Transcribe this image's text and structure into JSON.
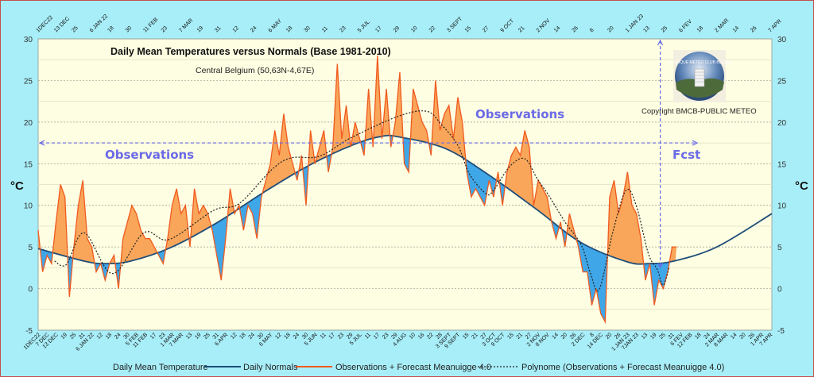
{
  "chart_data": {
    "type": "area",
    "title": "Daily Mean Temperatures versus Normals (Base 1981-2010)",
    "subtitle": "Central Belgium (50,63N-4,67E)",
    "ylabel": "°C",
    "ylabel_right": "°C",
    "ylim": [
      -5,
      30
    ],
    "yticks": [
      30,
      25,
      20,
      15,
      10,
      5,
      0,
      -5
    ],
    "xlim": [
      "2022-12-01",
      "2024-04-07"
    ],
    "grid": true,
    "legend_position": "bottom",
    "top_tick_labels": [
      "1DEC22",
      "13 DEC",
      "25",
      "6 JAN 22",
      "18",
      "30",
      "11 FEB",
      "23",
      "7 MAR",
      "19",
      "31",
      "12",
      "24",
      "6 MAY",
      "18",
      "30",
      "11",
      "23",
      "5 JUL",
      "17",
      "29",
      "10",
      "22",
      "3 SEPT",
      "15",
      "27",
      "9 OCT",
      "21",
      "2 NOV",
      "14",
      "26",
      "8",
      "20",
      "1 JAN 23",
      "13",
      "25",
      "6 FEV",
      "18",
      "2 MAR",
      "14",
      "26",
      "7 APR"
    ],
    "bottom_tick_labels": [
      "1DEC22",
      "7 DEC",
      "13 DEC",
      "19",
      "25",
      "31",
      "6 JAN 22",
      "12",
      "18",
      "24",
      "30",
      "5 FEB",
      "11 FEB",
      "17",
      "23",
      "1 MAR",
      "7 MAR",
      "13",
      "19",
      "25",
      "31",
      "6 APR",
      "12",
      "18",
      "24",
      "30",
      "6 MAY",
      "12",
      "18",
      "24",
      "30",
      "5 JUN",
      "11",
      "17",
      "23",
      "29",
      "5 JUL",
      "11",
      "17",
      "23",
      "29",
      "4 AUG",
      "10",
      "16",
      "22",
      "28",
      "3 SEPT",
      "9 SEPT",
      "15",
      "21",
      "27",
      "3 OCT",
      "9 OCT",
      "15",
      "21",
      "27",
      "2 NOV",
      "8 NOV",
      "14",
      "20",
      "26",
      "2 DEC",
      "8",
      "14 DEC",
      "20",
      "26",
      "1 JAN 23",
      "7JAN 23",
      "13",
      "19",
      "25",
      "31",
      "6 FEV",
      "12 FEB",
      "18",
      "24",
      "2 MAR",
      "8 MAR",
      "14",
      "20",
      "26",
      "1 APR",
      "7 APR"
    ],
    "legend": [
      "Daily Mean Temperature",
      "Daily Normals",
      "Observations + Forecast Meanuigge 4.0",
      "Polynome (Observations + Forecast Meanuigge 4.0)"
    ],
    "colors": {
      "above_normal": "#f9a65a",
      "below_normal": "#3fa6e8",
      "observations": "#f05a1e",
      "normals": "#1f4e79",
      "polynome": "#222222",
      "annotation": "#6a6ae8",
      "plot_bg": "#fefee2",
      "page_bg": "#a8eef8"
    },
    "series": [
      {
        "name": "Observations + Forecast Meanuigge 4.0",
        "points": [
          [
            "2022-12-01",
            7
          ],
          [
            "2022-12-04",
            2
          ],
          [
            "2022-12-07",
            4
          ],
          [
            "2022-12-10",
            3
          ],
          [
            "2022-12-13",
            8
          ],
          [
            "2022-12-16",
            12.5
          ],
          [
            "2022-12-19",
            11
          ],
          [
            "2022-12-22",
            -1
          ],
          [
            "2022-12-25",
            5
          ],
          [
            "2022-12-28",
            10
          ],
          [
            "2022-12-31",
            13
          ],
          [
            "2023-01-03",
            6
          ],
          [
            "2023-01-06",
            5
          ],
          [
            "2023-01-09",
            2
          ],
          [
            "2023-01-12",
            3
          ],
          [
            "2023-01-15",
            1
          ],
          [
            "2023-01-18",
            3
          ],
          [
            "2023-01-21",
            4
          ],
          [
            "2023-01-24",
            0
          ],
          [
            "2023-01-27",
            6
          ],
          [
            "2023-01-30",
            8
          ],
          [
            "2023-02-02",
            10
          ],
          [
            "2023-02-05",
            9
          ],
          [
            "2023-02-08",
            7
          ],
          [
            "2023-02-11",
            6
          ],
          [
            "2023-02-14",
            6
          ],
          [
            "2023-02-17",
            5
          ],
          [
            "2023-02-20",
            4
          ],
          [
            "2023-02-23",
            3
          ],
          [
            "2023-02-26",
            6
          ],
          [
            "2023-03-01",
            10
          ],
          [
            "2023-03-04",
            12
          ],
          [
            "2023-03-07",
            9
          ],
          [
            "2023-03-10",
            10
          ],
          [
            "2023-03-13",
            5
          ],
          [
            "2023-03-16",
            12
          ],
          [
            "2023-03-19",
            9
          ],
          [
            "2023-03-22",
            10
          ],
          [
            "2023-03-25",
            9
          ],
          [
            "2023-03-28",
            7
          ],
          [
            "2023-03-31",
            4
          ],
          [
            "2023-04-03",
            1
          ],
          [
            "2023-04-06",
            6
          ],
          [
            "2023-04-09",
            12
          ],
          [
            "2023-04-12",
            9
          ],
          [
            "2023-04-15",
            10
          ],
          [
            "2023-04-18",
            7
          ],
          [
            "2023-04-21",
            10
          ],
          [
            "2023-04-24",
            9
          ],
          [
            "2023-04-27",
            6
          ],
          [
            "2023-04-30",
            11
          ],
          [
            "2023-05-03",
            13
          ],
          [
            "2023-05-06",
            15
          ],
          [
            "2023-05-09",
            19
          ],
          [
            "2023-05-12",
            16
          ],
          [
            "2023-05-15",
            21
          ],
          [
            "2023-05-18",
            17
          ],
          [
            "2023-05-21",
            15
          ],
          [
            "2023-05-24",
            13
          ],
          [
            "2023-05-27",
            16
          ],
          [
            "2023-05-30",
            10
          ],
          [
            "2023-06-02",
            19
          ],
          [
            "2023-06-05",
            15
          ],
          [
            "2023-06-08",
            17
          ],
          [
            "2023-06-11",
            19
          ],
          [
            "2023-06-14",
            14
          ],
          [
            "2023-06-17",
            17
          ],
          [
            "2023-06-20",
            27
          ],
          [
            "2023-06-23",
            18
          ],
          [
            "2023-06-26",
            22
          ],
          [
            "2023-06-29",
            17
          ],
          [
            "2023-07-02",
            20
          ],
          [
            "2023-07-05",
            18
          ],
          [
            "2023-07-08",
            16
          ],
          [
            "2023-07-11",
            24
          ],
          [
            "2023-07-14",
            17
          ],
          [
            "2023-07-17",
            28
          ],
          [
            "2023-07-20",
            18
          ],
          [
            "2023-07-23",
            24
          ],
          [
            "2023-07-26",
            17
          ],
          [
            "2023-07-29",
            20
          ],
          [
            "2023-08-01",
            26
          ],
          [
            "2023-08-04",
            15
          ],
          [
            "2023-08-07",
            14
          ],
          [
            "2023-08-10",
            24
          ],
          [
            "2023-08-13",
            22
          ],
          [
            "2023-08-16",
            20
          ],
          [
            "2023-08-19",
            19
          ],
          [
            "2023-08-22",
            16
          ],
          [
            "2023-08-25",
            25
          ],
          [
            "2023-08-28",
            19
          ],
          [
            "2023-08-31",
            21
          ],
          [
            "2023-09-03",
            22
          ],
          [
            "2023-09-06",
            18
          ],
          [
            "2023-09-09",
            23
          ],
          [
            "2023-09-12",
            20
          ],
          [
            "2023-09-15",
            14
          ],
          [
            "2023-09-18",
            11
          ],
          [
            "2023-09-21",
            12
          ],
          [
            "2023-09-24",
            11
          ],
          [
            "2023-09-27",
            10
          ],
          [
            "2023-09-30",
            13
          ],
          [
            "2023-10-03",
            11
          ],
          [
            "2023-10-06",
            14
          ],
          [
            "2023-10-09",
            10
          ],
          [
            "2023-10-12",
            14
          ],
          [
            "2023-10-15",
            16
          ],
          [
            "2023-10-18",
            17
          ],
          [
            "2023-10-21",
            16
          ],
          [
            "2023-10-24",
            19
          ],
          [
            "2023-10-27",
            17
          ],
          [
            "2023-10-30",
            10
          ],
          [
            "2023-11-02",
            13
          ],
          [
            "2023-11-05",
            12
          ],
          [
            "2023-11-08",
            11
          ],
          [
            "2023-11-11",
            8
          ],
          [
            "2023-11-14",
            6
          ],
          [
            "2023-11-17",
            8
          ],
          [
            "2023-11-20",
            5
          ],
          [
            "2023-11-23",
            9
          ],
          [
            "2023-11-26",
            7
          ],
          [
            "2023-11-29",
            5
          ],
          [
            "2023-12-02",
            2
          ],
          [
            "2023-12-05",
            2
          ],
          [
            "2023-12-08",
            -2
          ],
          [
            "2023-12-11",
            0
          ],
          [
            "2023-12-14",
            -3
          ],
          [
            "2023-12-17",
            -4
          ],
          [
            "2023-12-20",
            11
          ],
          [
            "2023-12-23",
            13
          ],
          [
            "2023-12-26",
            9
          ],
          [
            "2023-12-29",
            11
          ],
          [
            "2024-01-01",
            14
          ],
          [
            "2024-01-04",
            10
          ],
          [
            "2024-01-07",
            9
          ],
          [
            "2024-01-10",
            6
          ],
          [
            "2024-01-13",
            1
          ],
          [
            "2024-01-16",
            3
          ],
          [
            "2024-01-19",
            -2
          ],
          [
            "2024-01-22",
            1
          ],
          [
            "2024-01-25",
            0
          ],
          [
            "2024-01-28",
            2
          ],
          [
            "2024-01-31",
            5
          ],
          [
            "2024-02-03",
            5
          ]
        ]
      },
      {
        "name": "Daily Normals",
        "points": [
          [
            "2022-12-01",
            4.8
          ],
          [
            "2023-01-01",
            3.3
          ],
          [
            "2023-01-15",
            3.0
          ],
          [
            "2023-02-01",
            3.3
          ],
          [
            "2023-03-01",
            5.0
          ],
          [
            "2023-04-01",
            8.0
          ],
          [
            "2023-05-01",
            11.5
          ],
          [
            "2023-06-01",
            14.8
          ],
          [
            "2023-07-01",
            17.3
          ],
          [
            "2023-07-20",
            18.3
          ],
          [
            "2023-08-01",
            18.2
          ],
          [
            "2023-09-01",
            16.8
          ],
          [
            "2023-10-01",
            13.5
          ],
          [
            "2023-11-01",
            9.5
          ],
          [
            "2023-12-01",
            5.5
          ],
          [
            "2024-01-01",
            3.2
          ],
          [
            "2024-01-15",
            3.0
          ],
          [
            "2024-02-01",
            3.3
          ],
          [
            "2024-03-01",
            5.0
          ],
          [
            "2024-04-07",
            9.0
          ]
        ]
      },
      {
        "name": "Polynome (Observations + Forecast Meanuigge 4.0)",
        "points": [
          [
            "2022-12-12",
            3.3
          ],
          [
            "2022-12-20",
            2.9
          ],
          [
            "2023-01-01",
            6.7
          ],
          [
            "2023-01-20",
            1.8
          ],
          [
            "2023-02-10",
            6.7
          ],
          [
            "2023-02-27",
            5.9
          ],
          [
            "2023-03-29",
            9.4
          ],
          [
            "2023-04-15",
            10.2
          ],
          [
            "2023-05-07",
            14.3
          ],
          [
            "2023-05-20",
            15.7
          ],
          [
            "2023-06-08",
            15.9
          ],
          [
            "2023-06-29",
            18.1
          ],
          [
            "2023-07-31",
            20.7
          ],
          [
            "2023-08-19",
            21.3
          ],
          [
            "2023-08-29",
            19.7
          ],
          [
            "2023-09-09",
            17.2
          ],
          [
            "2023-09-17",
            13.7
          ],
          [
            "2023-09-28",
            11.4
          ],
          [
            "2023-10-03",
            11.8
          ],
          [
            "2023-10-14",
            14.7
          ],
          [
            "2023-10-24",
            15.6
          ],
          [
            "2023-11-01",
            13.3
          ],
          [
            "2023-11-09",
            11.2
          ],
          [
            "2023-11-20",
            8.0
          ],
          [
            "2023-12-01",
            5.2
          ],
          [
            "2023-12-07",
            1.9
          ],
          [
            "2023-12-13",
            -0.1
          ],
          [
            "2023-12-22",
            6.7
          ],
          [
            "2023-12-31",
            11.8
          ],
          [
            "2024-01-07",
            9.9
          ],
          [
            "2024-01-15",
            4.2
          ],
          [
            "2024-01-21",
            2.3
          ],
          [
            "2024-01-25",
            0.4
          ],
          [
            "2024-01-29",
            2.6
          ]
        ]
      }
    ],
    "annotations": {
      "observations_left": "Observations",
      "observations_right": "Observations",
      "forecast": "Fcst",
      "forecast_start": "2024-01-23",
      "arrow_level": 17.5
    }
  },
  "logo": {
    "text": "BELGIQUE METEO CLUB BELGIË"
  },
  "copyright": "Copyright BMCB-PUBLIC METEO"
}
